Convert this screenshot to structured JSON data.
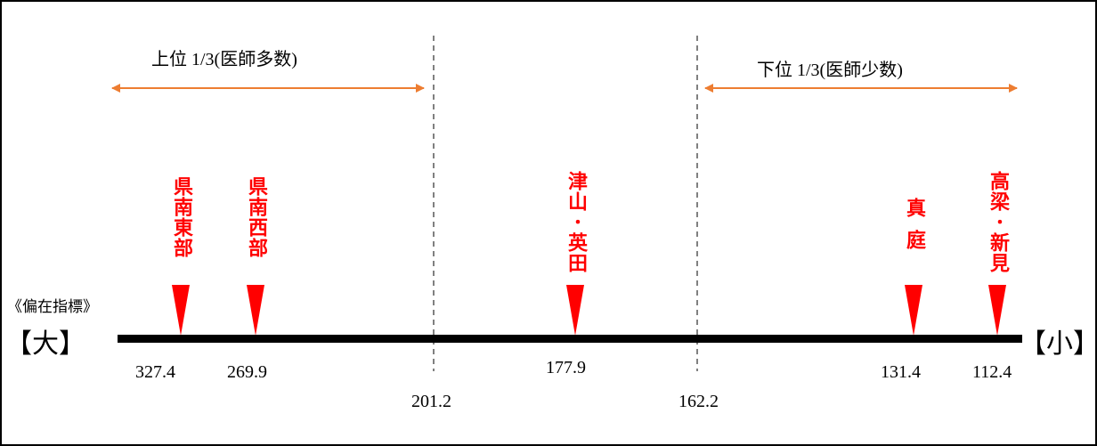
{
  "colors": {
    "axis": "#000000",
    "marker": "#ff0000",
    "range_arrow": "#ed7d31",
    "region_text": "#ff0000"
  },
  "indicator_label": "《偏在指標》",
  "axis": {
    "left_label": "【大】",
    "right_label": "【小】"
  },
  "ranges": {
    "upper_third": "上位 1/3(医師多数)",
    "lower_third": "下位 1/3(医師少数)"
  },
  "thresholds": [
    {
      "value": "201.2"
    },
    {
      "value": "162.2"
    }
  ],
  "regions": [
    {
      "name": "県南東部",
      "value": "327.4"
    },
    {
      "name": "県南西部",
      "value": "269.9"
    },
    {
      "name": "津山･英田",
      "value": "177.9"
    },
    {
      "name": "真庭",
      "value": "131.4"
    },
    {
      "name": "高梁･新見",
      "value": "112.4"
    }
  ]
}
